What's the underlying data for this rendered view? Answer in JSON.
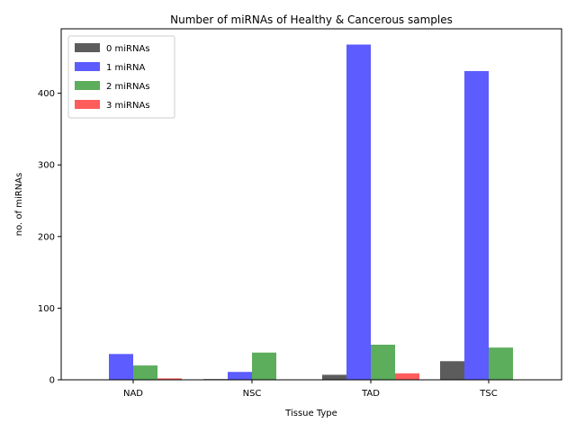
{
  "chart_data": {
    "type": "bar",
    "title": "Number of miRNAs of Healthy & Cancerous samples",
    "xlabel": "Tissue Type",
    "ylabel": "no. of miRNAs",
    "categories": [
      "NAD",
      "NSC",
      "TAD",
      "TSC"
    ],
    "ylim": [
      0,
      490
    ],
    "yticks": [
      0,
      100,
      200,
      300,
      400
    ],
    "legend_position": "upper-left",
    "grid": false,
    "series": [
      {
        "name": "0 miRNAs",
        "color": "#333333",
        "values": [
          0,
          1,
          7,
          26
        ]
      },
      {
        "name": "1 miRNA",
        "color": "#3333ff",
        "values": [
          36,
          11,
          468,
          431
        ]
      },
      {
        "name": "2 miRNAs",
        "color": "#339933",
        "values": [
          20,
          38,
          49,
          45
        ]
      },
      {
        "name": "3 miRNAs",
        "color": "#ff3333",
        "values": [
          2,
          0,
          9,
          0
        ]
      }
    ]
  }
}
